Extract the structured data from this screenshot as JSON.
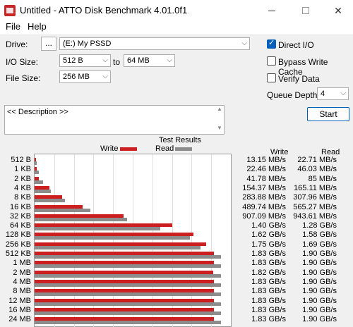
{
  "window": {
    "title": "Untitled - ATTO Disk Benchmark 4.01.0f1"
  },
  "menu": {
    "file": "File",
    "help": "Help"
  },
  "settings": {
    "drive_label": "Drive:",
    "browse_label": "...",
    "drive_value": "(E:) My PSSD",
    "io_size_label": "I/O Size:",
    "io_from": "512 B",
    "to_label": "to",
    "io_to": "64 MB",
    "file_size_label": "File Size:",
    "file_size": "256 MB",
    "direct_io_label": "Direct I/O",
    "direct_io_checked": true,
    "bypass_cache_label": "Bypass Write Cache",
    "bypass_cache_checked": false,
    "verify_label": "Verify Data",
    "verify_checked": false,
    "queue_depth_label": "Queue Depth:",
    "queue_depth": "4",
    "description": "<< Description >>",
    "start_label": "Start"
  },
  "colors": {
    "write": "#cc2020",
    "read": "#8c8c8c"
  },
  "results": {
    "title": "Test Results",
    "legend_write": "Write",
    "legend_read": "Read",
    "col_write": "Write",
    "col_read": "Read",
    "rows": [
      {
        "size": "512 B",
        "write": "13.15 MB/s",
        "read": "22.71 MB/s"
      },
      {
        "size": "1 KB",
        "write": "22.46 MB/s",
        "read": "46.03 MB/s"
      },
      {
        "size": "2 KB",
        "write": "41.78 MB/s",
        "read": "85 MB/s"
      },
      {
        "size": "4 KB",
        "write": "154.37 MB/s",
        "read": "165.11 MB/s"
      },
      {
        "size": "8 KB",
        "write": "283.88 MB/s",
        "read": "307.96 MB/s"
      },
      {
        "size": "16 KB",
        "write": "489.74 MB/s",
        "read": "565.27 MB/s"
      },
      {
        "size": "32 KB",
        "write": "907.09 MB/s",
        "read": "943.61 MB/s"
      },
      {
        "size": "64 KB",
        "write": "1.40 GB/s",
        "read": "1.28 GB/s"
      },
      {
        "size": "128 KB",
        "write": "1.62 GB/s",
        "read": "1.58 GB/s"
      },
      {
        "size": "256 KB",
        "write": "1.75 GB/s",
        "read": "1.69 GB/s"
      },
      {
        "size": "512 KB",
        "write": "1.83 GB/s",
        "read": "1.90 GB/s"
      },
      {
        "size": "1 MB",
        "write": "1.83 GB/s",
        "read": "1.90 GB/s"
      },
      {
        "size": "2 MB",
        "write": "1.82 GB/s",
        "read": "1.90 GB/s"
      },
      {
        "size": "4 MB",
        "write": "1.83 GB/s",
        "read": "1.90 GB/s"
      },
      {
        "size": "8 MB",
        "write": "1.83 GB/s",
        "read": "1.90 GB/s"
      },
      {
        "size": "12 MB",
        "write": "1.83 GB/s",
        "read": "1.90 GB/s"
      },
      {
        "size": "16 MB",
        "write": "1.83 GB/s",
        "read": "1.90 GB/s"
      },
      {
        "size": "24 MB",
        "write": "1.83 GB/s",
        "read": "1.90 GB/s"
      }
    ]
  },
  "chart_data": {
    "type": "bar",
    "categories": [
      "512 B",
      "1 KB",
      "2 KB",
      "4 KB",
      "8 KB",
      "16 KB",
      "32 KB",
      "64 KB",
      "128 KB",
      "256 KB",
      "512 KB",
      "1 MB",
      "2 MB",
      "4 MB",
      "8 MB",
      "12 MB",
      "16 MB",
      "24 MB"
    ],
    "series": [
      {
        "name": "Write",
        "values": [
          13.15,
          22.46,
          41.78,
          154.37,
          283.88,
          489.74,
          907.09,
          1400,
          1620,
          1750,
          1830,
          1830,
          1820,
          1830,
          1830,
          1830,
          1830,
          1830
        ]
      },
      {
        "name": "Read",
        "values": [
          22.71,
          46.03,
          85,
          165.11,
          307.96,
          565.27,
          943.61,
          1280,
          1580,
          1690,
          1900,
          1900,
          1900,
          1900,
          1900,
          1900,
          1900,
          1900
        ]
      }
    ],
    "unit": "MB/s",
    "xlim": [
      0,
      2000
    ],
    "title": "Test Results",
    "orientation": "horizontal"
  }
}
